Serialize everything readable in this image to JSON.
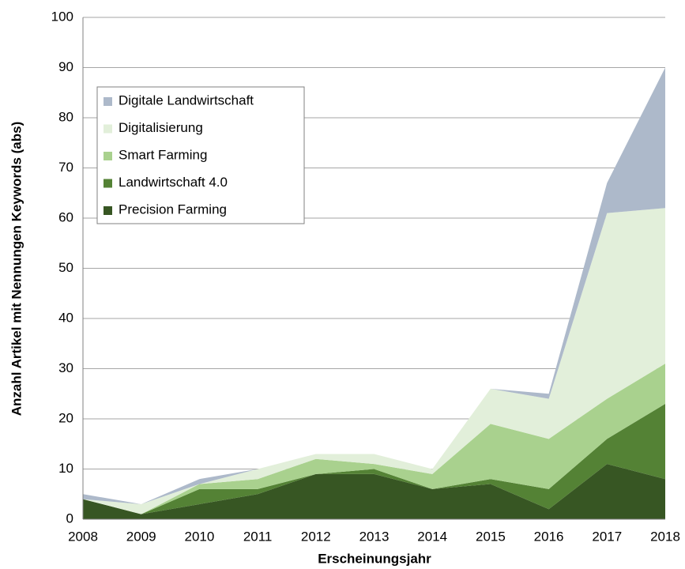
{
  "chart_data": {
    "type": "stacked_area",
    "xlabel": "Erscheinungsjahr",
    "ylabel": "Anzahl Artikel mit Nennungen Keywords (abs)",
    "categories": [
      "2008",
      "2009",
      "2010",
      "2011",
      "2012",
      "2013",
      "2014",
      "2015",
      "2016",
      "2017",
      "2018"
    ],
    "series": [
      {
        "name": "Precision Farming",
        "color": "#375623",
        "values": [
          4,
          1,
          3,
          5,
          9,
          9,
          6,
          7,
          2,
          11,
          8
        ]
      },
      {
        "name": "Landwirtschaft 4.0",
        "color": "#548235",
        "values": [
          0,
          0,
          3,
          1,
          0,
          1,
          0,
          1,
          4,
          5,
          15
        ]
      },
      {
        "name": "Smart Farming",
        "color": "#a9d18e",
        "values": [
          0,
          0,
          1,
          2,
          3,
          1,
          3,
          11,
          10,
          8,
          8
        ]
      },
      {
        "name": "Digitalisierung",
        "color": "#e2efda",
        "values": [
          0,
          2,
          0,
          2,
          1,
          2,
          1,
          7,
          8,
          37,
          31
        ]
      },
      {
        "name": "Digitale Landwirtschaft",
        "color": "#adb9ca",
        "values": [
          1,
          0,
          1,
          0,
          0,
          0,
          0,
          0,
          1,
          6,
          28
        ]
      }
    ],
    "ylim": [
      0,
      100
    ],
    "yticks": [
      0,
      10,
      20,
      30,
      40,
      50,
      60,
      70,
      80,
      90,
      100
    ],
    "grid": true,
    "legend": "upper left"
  }
}
